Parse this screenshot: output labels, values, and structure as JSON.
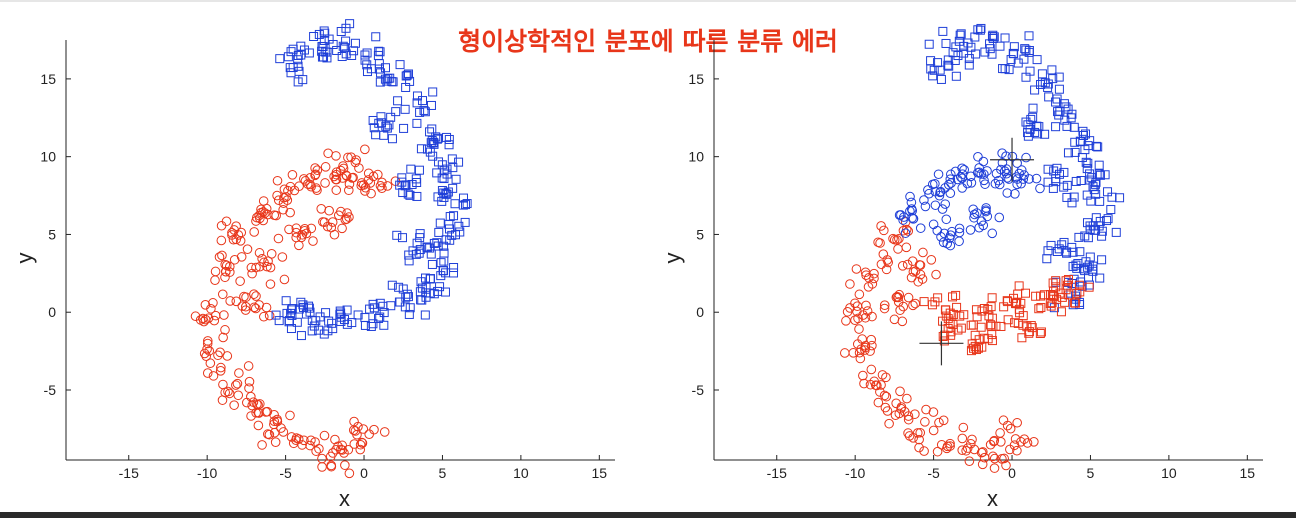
{
  "title": "형이상학적인 분포에 따른 분류 에러",
  "colors": {
    "red": "#e8361a",
    "blue": "#1f3fd8",
    "title": "#e8361a"
  },
  "chart_data": [
    {
      "type": "scatter",
      "xlabel": "x",
      "ylabel": "y",
      "xlim": [
        -19,
        16
      ],
      "ylim": [
        -9.5,
        17.5
      ],
      "xticks": [
        -15,
        -10,
        -5,
        0,
        5,
        10,
        15
      ],
      "yticks": [
        -5,
        0,
        5,
        10,
        15
      ],
      "series": [
        {
          "marker": "circle",
          "color": "#e8361a",
          "shape": "inner crescent (lower arc)",
          "points": [
            [
              -6.5,
              6.2
            ],
            [
              -5.0,
              7.2
            ],
            [
              -3.5,
              8.3
            ],
            [
              -2.0,
              9.0
            ],
            [
              -0.5,
              9.3
            ],
            [
              0.5,
              8.5
            ],
            [
              -8.0,
              4.5
            ],
            [
              -9.0,
              2.5
            ],
            [
              -9.8,
              0.0
            ],
            [
              -9.5,
              -2.5
            ],
            [
              -8.5,
              -4.5
            ],
            [
              -7.0,
              -6.3
            ],
            [
              -5.5,
              -7.5
            ],
            [
              -3.5,
              -8.5
            ],
            [
              -1.5,
              -9.0
            ],
            [
              0.0,
              -8.0
            ],
            [
              -2.0,
              6.0
            ],
            [
              -4.0,
              5.0
            ],
            [
              -6.0,
              3.0
            ],
            [
              -7.0,
              0.5
            ]
          ]
        },
        {
          "marker": "square",
          "color": "#1f3fd8",
          "shape": "outer crescent (upper arc)",
          "points": [
            [
              -4.5,
              16.0
            ],
            [
              -3.0,
              17.0
            ],
            [
              -1.5,
              17.3
            ],
            [
              0.5,
              16.5
            ],
            [
              2.0,
              15.0
            ],
            [
              3.5,
              13.0
            ],
            [
              4.5,
              11.0
            ],
            [
              5.2,
              9.0
            ],
            [
              5.5,
              7.0
            ],
            [
              5.3,
              5.0
            ],
            [
              4.8,
              3.0
            ],
            [
              4.0,
              1.5
            ],
            [
              2.5,
              0.5
            ],
            [
              0.5,
              0.0
            ],
            [
              -1.5,
              -0.5
            ],
            [
              -3.5,
              -0.5
            ],
            [
              -4.5,
              0.0
            ],
            [
              1.5,
              12.0
            ],
            [
              3.0,
              8.0
            ],
            [
              3.5,
              4.0
            ]
          ]
        }
      ]
    },
    {
      "type": "scatter",
      "xlabel": "x",
      "ylabel": "y",
      "xlim": [
        -19,
        16
      ],
      "ylim": [
        -9.5,
        17.5
      ],
      "xticks": [
        -15,
        -10,
        -5,
        0,
        5,
        10,
        15
      ],
      "yticks": [
        -5,
        0,
        5,
        10,
        15
      ],
      "centroids": [
        [
          0.0,
          9.8
        ],
        [
          -4.5,
          -2.0
        ]
      ],
      "series": [
        {
          "marker": "circle",
          "color": "#e8361a",
          "shape": "lower-left arc",
          "points": [
            [
              -7.5,
              5.0
            ],
            [
              -9.0,
              2.5
            ],
            [
              -9.8,
              0.0
            ],
            [
              -9.5,
              -2.5
            ],
            [
              -8.5,
              -4.5
            ],
            [
              -7.0,
              -6.3
            ],
            [
              -5.5,
              -7.5
            ],
            [
              -3.5,
              -8.5
            ],
            [
              -1.5,
              -9.0
            ],
            [
              0.0,
              -8.0
            ],
            [
              -6.0,
              3.0
            ],
            [
              -7.0,
              0.5
            ]
          ]
        },
        {
          "marker": "circle",
          "color": "#1f3fd8",
          "shape": "upper part of inner arc",
          "points": [
            [
              -6.5,
              6.5
            ],
            [
              -5.0,
              7.5
            ],
            [
              -3.5,
              8.3
            ],
            [
              -2.0,
              9.0
            ],
            [
              -0.5,
              9.3
            ],
            [
              0.5,
              8.5
            ],
            [
              -2.0,
              6.0
            ],
            [
              -4.0,
              5.0
            ]
          ]
        },
        {
          "marker": "square",
          "color": "#1f3fd8",
          "shape": "upper-right arc",
          "points": [
            [
              -4.5,
              16.0
            ],
            [
              -3.0,
              17.0
            ],
            [
              -1.5,
              17.3
            ],
            [
              0.5,
              16.5
            ],
            [
              2.0,
              15.0
            ],
            [
              3.5,
              13.0
            ],
            [
              4.5,
              11.0
            ],
            [
              5.2,
              9.0
            ],
            [
              5.5,
              7.0
            ],
            [
              5.3,
              5.0
            ],
            [
              4.8,
              3.0
            ],
            [
              4.0,
              1.5
            ],
            [
              1.5,
              12.0
            ],
            [
              3.0,
              8.0
            ],
            [
              3.5,
              4.0
            ]
          ]
        },
        {
          "marker": "square",
          "color": "#e8361a",
          "shape": "lower part of outer arc",
          "points": [
            [
              2.5,
              1.0
            ],
            [
              0.5,
              0.5
            ],
            [
              -1.5,
              0.0
            ],
            [
              -3.5,
              -0.5
            ],
            [
              -4.5,
              0.5
            ],
            [
              -2.0,
              -1.5
            ],
            [
              1.0,
              -0.5
            ],
            [
              3.5,
              1.5
            ]
          ]
        }
      ]
    }
  ]
}
